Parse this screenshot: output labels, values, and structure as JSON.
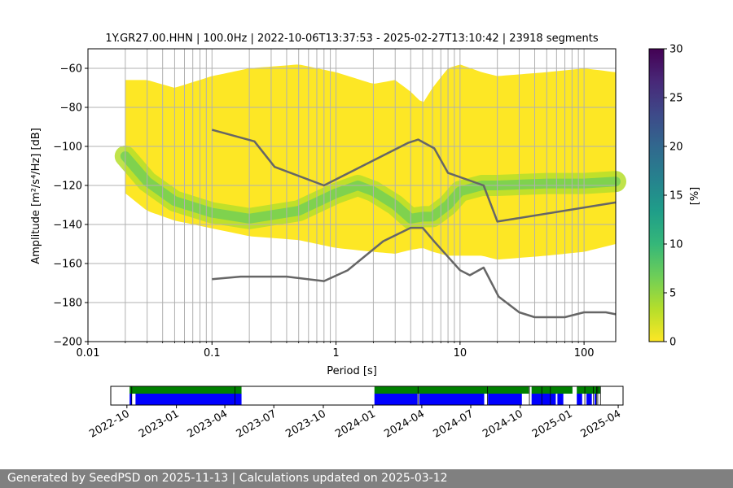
{
  "chart_data": {
    "type": "heatmap",
    "title": "1Y.GR27.00.HHN | 100.0Hz | 2022-10-06T13:37:53 - 2025-02-27T13:10:42 | 23918 segments",
    "xlabel": "Period [s]",
    "ylabel": "Amplitude [m²/s⁴/Hz] [dB]",
    "xscale": "log",
    "xlim": [
      0.01,
      180
    ],
    "ylim": [
      -200,
      -50
    ],
    "xticks": [
      {
        "value": 0.01,
        "label": "0.01"
      },
      {
        "value": 0.1,
        "label": "0.1"
      },
      {
        "value": 1,
        "label": "1"
      },
      {
        "value": 10,
        "label": "10"
      },
      {
        "value": 100,
        "label": "100"
      }
    ],
    "yticks": [
      {
        "value": -60,
        "label": "−60"
      },
      {
        "value": -80,
        "label": "−80"
      },
      {
        "value": -100,
        "label": "−100"
      },
      {
        "value": -120,
        "label": "−120"
      },
      {
        "value": -140,
        "label": "−140"
      },
      {
        "value": -160,
        "label": "−160"
      },
      {
        "value": -180,
        "label": "−180"
      },
      {
        "value": -200,
        "label": "−200"
      }
    ],
    "grid": true,
    "colorbar": {
      "label": "[%]",
      "range": [
        0,
        30
      ],
      "ticks": [
        {
          "value": 0,
          "label": "0"
        },
        {
          "value": 5,
          "label": "5"
        },
        {
          "value": 10,
          "label": "10"
        },
        {
          "value": 15,
          "label": "15"
        },
        {
          "value": 20,
          "label": "20"
        },
        {
          "value": 25,
          "label": "25"
        },
        {
          "value": 30,
          "label": "30"
        }
      ],
      "colormap": [
        "#fde725",
        "#b5de2b",
        "#6ece58",
        "#35b779",
        "#1f9e89",
        "#26828e",
        "#31688e",
        "#3e4989",
        "#482878",
        "#440154"
      ]
    },
    "density_ridge": {
      "x": [
        0.02,
        0.03,
        0.05,
        0.1,
        0.2,
        0.5,
        1,
        1.5,
        2,
        3,
        4,
        5,
        6,
        8,
        10,
        15,
        20,
        50,
        100,
        180
      ],
      "y": [
        -105,
        -118,
        -128,
        -134,
        -137,
        -133,
        -124,
        -120,
        -123,
        -130,
        -137,
        -136,
        -136,
        -130,
        -123,
        -120,
        -120,
        -119,
        -119,
        -118
      ]
    },
    "density_envelope": {
      "x": [
        0.02,
        0.03,
        0.05,
        0.1,
        0.2,
        0.5,
        1,
        2,
        3,
        4,
        5,
        6,
        8,
        10,
        15,
        20,
        50,
        100,
        180
      ],
      "upper": [
        -66,
        -66,
        -70,
        -64,
        -60,
        -58,
        -62,
        -68,
        -66,
        -72,
        -78,
        -70,
        -60,
        -58,
        -62,
        -64,
        -62,
        -60,
        -62
      ],
      "lower": [
        -124,
        -133,
        -138,
        -142,
        -146,
        -148,
        -152,
        -154,
        -155,
        -153,
        -152,
        -154,
        -156,
        -156,
        -156,
        -158,
        -156,
        -154,
        -150
      ]
    },
    "series": [
      {
        "x": [
          0.1,
          0.22,
          0.32,
          0.8,
          3.8,
          4.6,
          6.2,
          8,
          15.5,
          20,
          180
        ],
        "y": [
          -91.5,
          -97.4,
          -110.5,
          -120,
          -98.2,
          -96.5,
          -101,
          -113.6,
          -120,
          -138.5,
          -128.7
        ]
      },
      {
        "x": [
          0.1,
          0.17,
          0.4,
          0.8,
          1.24,
          2.4,
          4,
          5,
          6.2,
          10,
          12,
          15.5,
          20.5,
          30,
          40,
          70,
          100,
          150,
          180
        ],
        "y": [
          -168,
          -166.7,
          -166.7,
          -169,
          -163.5,
          -148.6,
          -141.7,
          -141.7,
          -148.7,
          -163.4,
          -166,
          -162.1,
          -177,
          -185,
          -187.5,
          -187.5,
          -185,
          -185,
          -186
        ]
      }
    ],
    "availability": {
      "tick_labels": [
        "2022-10",
        "2023-01",
        "2023-04",
        "2023-07",
        "2023-10",
        "2024-01",
        "2024-04",
        "2024-07",
        "2024-10",
        "2025-01",
        "2025-04"
      ],
      "range": [
        "2022-09-01",
        "2025-04-10"
      ],
      "green_color": "#008000",
      "blue_color": "#0000ff",
      "green_spans": [
        [
          "2022-10-06",
          "2023-05-02"
        ],
        [
          "2024-01-04",
          "2024-10-17"
        ],
        [
          "2024-10-22",
          "2025-01-06"
        ],
        [
          "2025-01-14",
          "2025-02-27"
        ]
      ],
      "blue_spans": [
        [
          "2022-10-06",
          "2022-10-10"
        ],
        [
          "2022-10-17",
          "2023-05-02"
        ],
        [
          "2024-01-04",
          "2024-03-24"
        ],
        [
          "2024-03-27",
          "2024-07-26"
        ],
        [
          "2024-08-02",
          "2024-10-04"
        ],
        [
          "2024-10-22",
          "2024-12-06"
        ],
        [
          "2024-12-09",
          "2024-12-20"
        ],
        [
          "2025-01-14",
          "2025-01-24"
        ],
        [
          "2025-02-01",
          "2025-02-11"
        ],
        [
          "2025-02-16",
          "2025-02-19"
        ]
      ],
      "gap_marks": [
        "2022-10-10",
        "2023-04-20",
        "2024-03-25",
        "2024-08-01",
        "2024-10-18",
        "2024-11-10",
        "2024-11-26",
        "2025-01-29",
        "2025-02-14",
        "2025-02-20",
        "2025-02-22",
        "2025-02-27"
      ]
    }
  },
  "footer": {
    "text": "Generated by SeedPSD on 2025-11-13 | Calculations updated on 2025-03-12"
  }
}
